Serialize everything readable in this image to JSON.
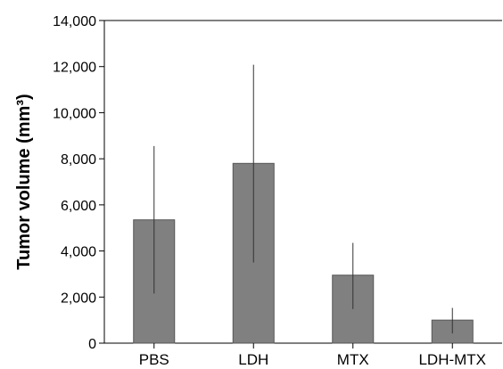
{
  "chart_data": {
    "type": "bar",
    "categories": [
      "PBS",
      "LDH",
      "MTX",
      "LDH-MTX"
    ],
    "series": [
      {
        "values": [
          5350,
          7800,
          2950,
          1000
        ],
        "error_low": [
          2150,
          3500,
          1480,
          420
        ],
        "error_high": [
          8550,
          12080,
          4350,
          1530
        ]
      }
    ],
    "ylabel": "Tumor volume (mm³)",
    "xlabel": "",
    "title": "",
    "ylim": [
      0,
      14000
    ],
    "yticks": [
      0,
      2000,
      4000,
      6000,
      8000,
      10000,
      12000,
      14000
    ],
    "ytick_labels": [
      "0",
      "2,000",
      "4,000",
      "6,000",
      "8,000",
      "10,000",
      "12,000",
      "14,000"
    ],
    "bar_color": "#808080",
    "grid": false,
    "legend": "none"
  }
}
